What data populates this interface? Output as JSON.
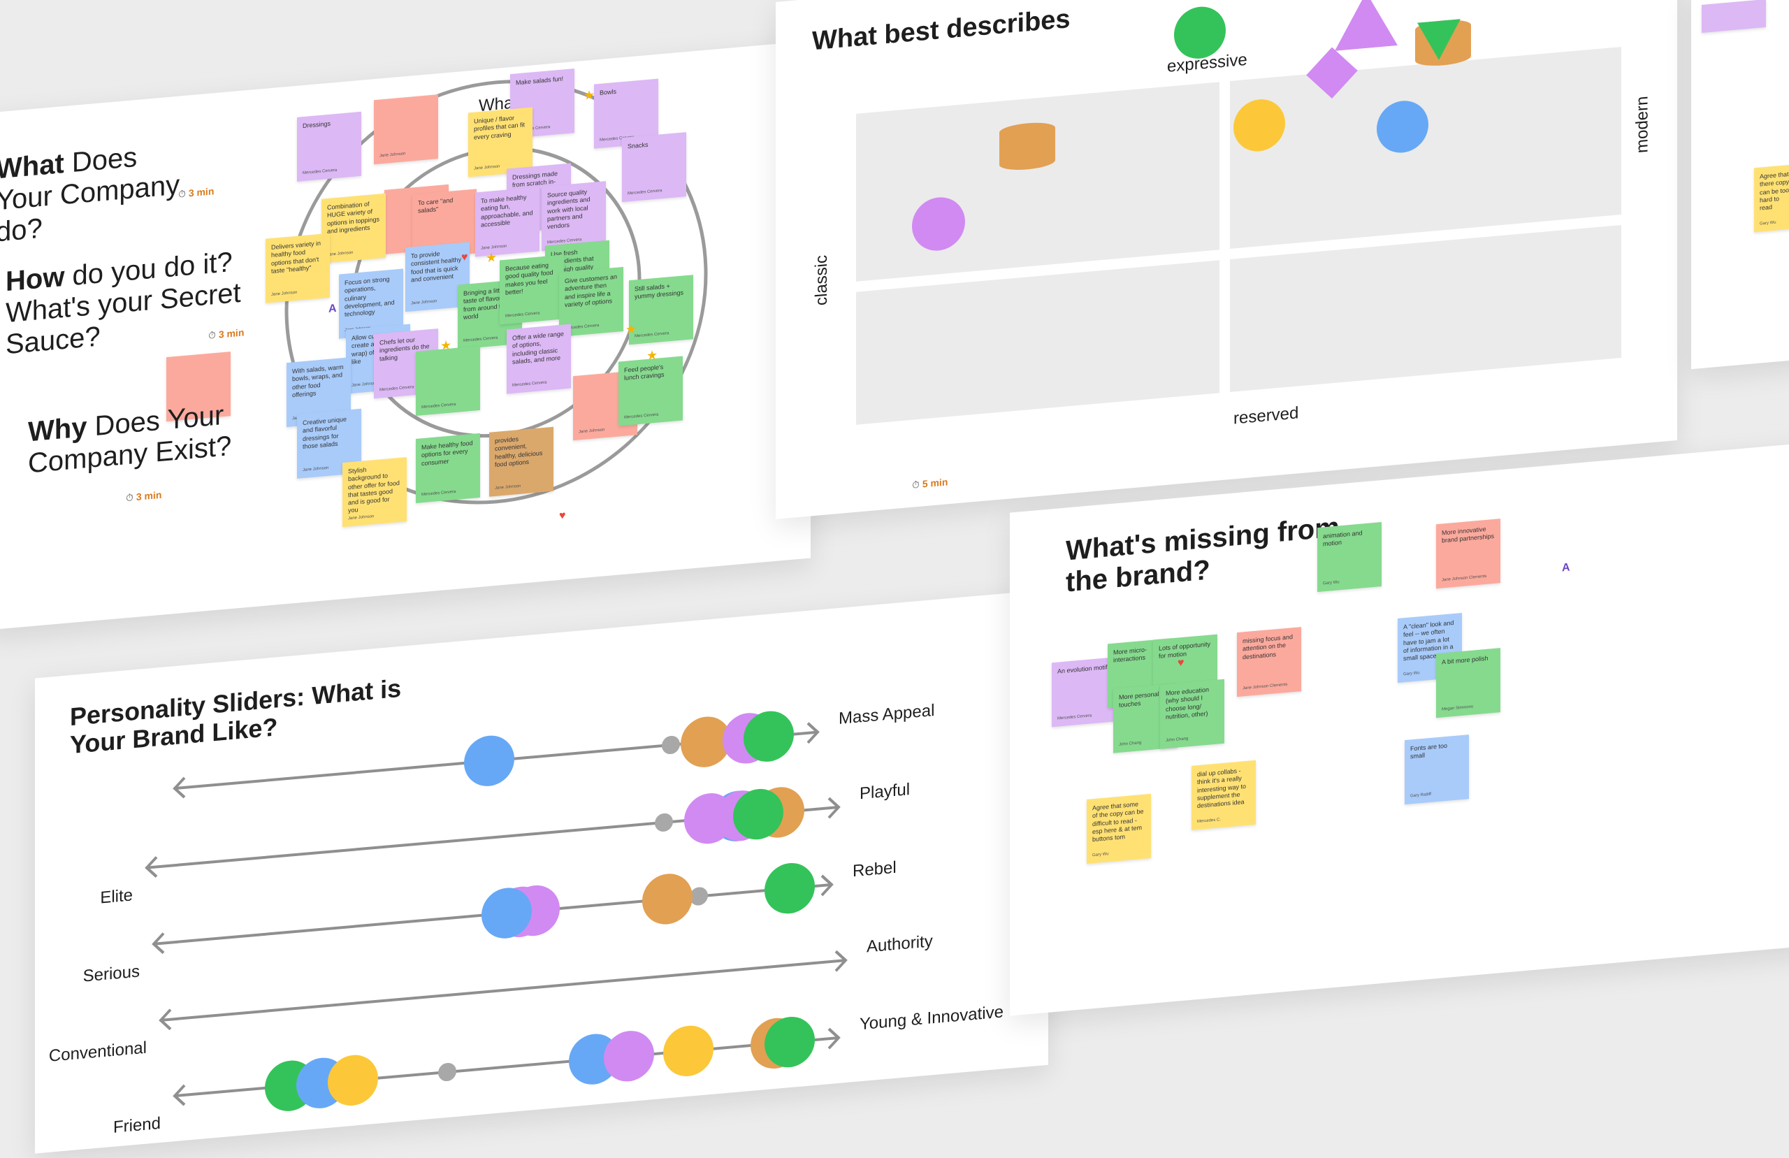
{
  "boards": {
    "company": {
      "q_what": {
        "bold": "What",
        "rest": " Does Your Company do?",
        "timer": "3 min"
      },
      "q_how": {
        "bold": "How",
        "rest": " do you do it? What's your Secret Sauce?",
        "timer": "3 min"
      },
      "q_why": {
        "bold": "Why",
        "rest": " Does Your Company Exist?",
        "timer": "3 min"
      },
      "ring_outer": "What",
      "ring_inner": "Wh",
      "stickies": [
        {
          "color": "purple",
          "text": "Dressings",
          "author": "Mercedes Cervera"
        },
        {
          "color": "pink",
          "text": "",
          "author": "Jane Johnson"
        },
        {
          "color": "purple",
          "text": "Make salads fun!",
          "author": "Mercedes Cervera"
        },
        {
          "color": "purple",
          "text": "Bowls",
          "author": "Mercedes Cervera"
        },
        {
          "color": "purple",
          "text": "Snacks",
          "author": "Mercedes Cervera"
        },
        {
          "color": "yellow",
          "text": "Unique / flavor profiles that can fit every craving",
          "author": "Jane Johnson"
        },
        {
          "color": "purple",
          "text": "Dressings made from scratch in-house",
          "author": "Jane Johnson"
        },
        {
          "color": "purple",
          "text": "Source quality ingredients and work with local partners and vendors",
          "author": "Mercedes Cervera"
        },
        {
          "color": "pink",
          "text": "",
          "author": ""
        },
        {
          "color": "yellow",
          "text": "Combination of HUGE variety of options in toppings and ingredients",
          "author": "Jane Johnson"
        },
        {
          "color": "pink",
          "text": "To care \"and salads\"",
          "author": "Jane Johnson"
        },
        {
          "color": "purple",
          "text": "To make healthy eating fun, approachable, and accessible",
          "author": "Jane Johnson"
        },
        {
          "color": "green",
          "text": "Use fresh ingredients that are high quality",
          "author": "Mercedes Cervera"
        },
        {
          "color": "yellow",
          "text": "Delivers variety in healthy food options that don't taste \"healthy\"",
          "author": "Jane Johnson"
        },
        {
          "color": "blue",
          "text": "Focus on strong operations, culinary development, and technology",
          "author": "Jane Johnson"
        },
        {
          "color": "blue",
          "text": "To provide consistent healthy food that is quick and convenient",
          "author": "Jane Johnson"
        },
        {
          "color": "green",
          "text": "Bringing a little taste of flavors from around the world",
          "author": "Mercedes Cervera"
        },
        {
          "color": "green",
          "text": "Because eating good quality food makes you feel better!",
          "author": "Mercedes Cervera"
        },
        {
          "color": "green",
          "text": "Give customers an adventure then and inspire life a variety of options",
          "author": "Mercedes Cervera"
        },
        {
          "color": "green",
          "text": "Still salads + yummy dressings",
          "author": "Mercedes Cervera"
        },
        {
          "color": "blue",
          "text": "Allow customers to create a meal (or wrap) of stuff they like",
          "author": "Jane Johnson"
        },
        {
          "color": "purple",
          "text": "Chefs let our ingredients do the talking",
          "author": "Mercedes Cervera"
        },
        {
          "color": "purple",
          "text": "Offer a wide range of options, including classic salads, and more",
          "author": "Mercedes Cervera"
        },
        {
          "color": "blue",
          "text": "With salads, warm bowls, wraps, and other food offerings",
          "author": "Jane Johnson"
        },
        {
          "color": "green",
          "text": "",
          "author": "Mercedes Cervera"
        },
        {
          "color": "pink",
          "text": "",
          "author": "Jane Johnson"
        },
        {
          "color": "green",
          "text": "Feed people's lunch cravings",
          "author": "Mercedes Cervera"
        },
        {
          "color": "blue",
          "text": "Creative unique and flavorful dressings for those salads",
          "author": "Jane Johnson"
        },
        {
          "color": "yellow",
          "text": "Stylish background to other offer for food that tastes good and is good for you",
          "author": "Jane Johnson"
        },
        {
          "color": "green",
          "text": "Make healthy food options for every consumer",
          "author": "Mercedes Cervera"
        },
        {
          "color": "tan",
          "text": "provides convenient, healthy, delicious food options",
          "author": "Jane Johnson"
        }
      ]
    },
    "describes": {
      "title": "What best describes",
      "axis_top": "expressive",
      "axis_bottom": "reserved",
      "axis_left": "classic",
      "axis_right": "modern"
    },
    "sliders": {
      "title": "Personality Sliders: What is Your Brand Like?",
      "timer": "5 min",
      "rows": [
        {
          "left": "",
          "right": "Mass Appeal"
        },
        {
          "left": "Elite",
          "right": "Playful"
        },
        {
          "left": "Serious",
          "right": "Rebel"
        },
        {
          "left": "Conventional",
          "right": "Authority"
        },
        {
          "left": "Friend",
          "right": "Young & Innovative"
        }
      ]
    },
    "missing": {
      "title": "What's missing from the brand?",
      "stickies": [
        {
          "color": "purple",
          "text": "An evolution motif",
          "author": "Mercedes Cervera"
        },
        {
          "color": "green",
          "text": "More micro-interactions",
          "author": "John Chang"
        },
        {
          "color": "green",
          "text": "Lots of opportunity for motion",
          "author": "John Chang"
        },
        {
          "color": "green",
          "text": "More personal touches",
          "author": "John Chang"
        },
        {
          "color": "green",
          "text": "More education (why should I choose long/ nutrition, other)",
          "author": "John Chang"
        },
        {
          "color": "pink",
          "text": "missing focus and attention on the destinations",
          "author": "Jane Johnson Clements"
        },
        {
          "color": "green",
          "text": "animation and motion",
          "author": "Gary Wu"
        },
        {
          "color": "pink",
          "text": "More innovative brand partnerships",
          "author": "Jane Johnson Clements"
        },
        {
          "color": "blue",
          "text": "A \"clean\" look and feel -- we often have to jam a lot of information in a small space",
          "author": "Gary Wu"
        },
        {
          "color": "green",
          "text": "A bit more polish",
          "author": "Megan Simmons"
        },
        {
          "color": "yellow",
          "text": "dial up collabs - think it's a really interesting way to supplement the destinations idea",
          "author": "Mercedes C."
        },
        {
          "color": "blue",
          "text": "Fonts are too small",
          "author": "Gary Ratliff"
        },
        {
          "color": "yellow",
          "text": "Agree that some of the copy can be difficult to read - esp here & at tem buttons tom",
          "author": "Gary Wu"
        }
      ]
    },
    "peek": {
      "sticky_text": "Agree that there copy can be too hard to read",
      "sticky_author": "Gary Wu"
    }
  }
}
